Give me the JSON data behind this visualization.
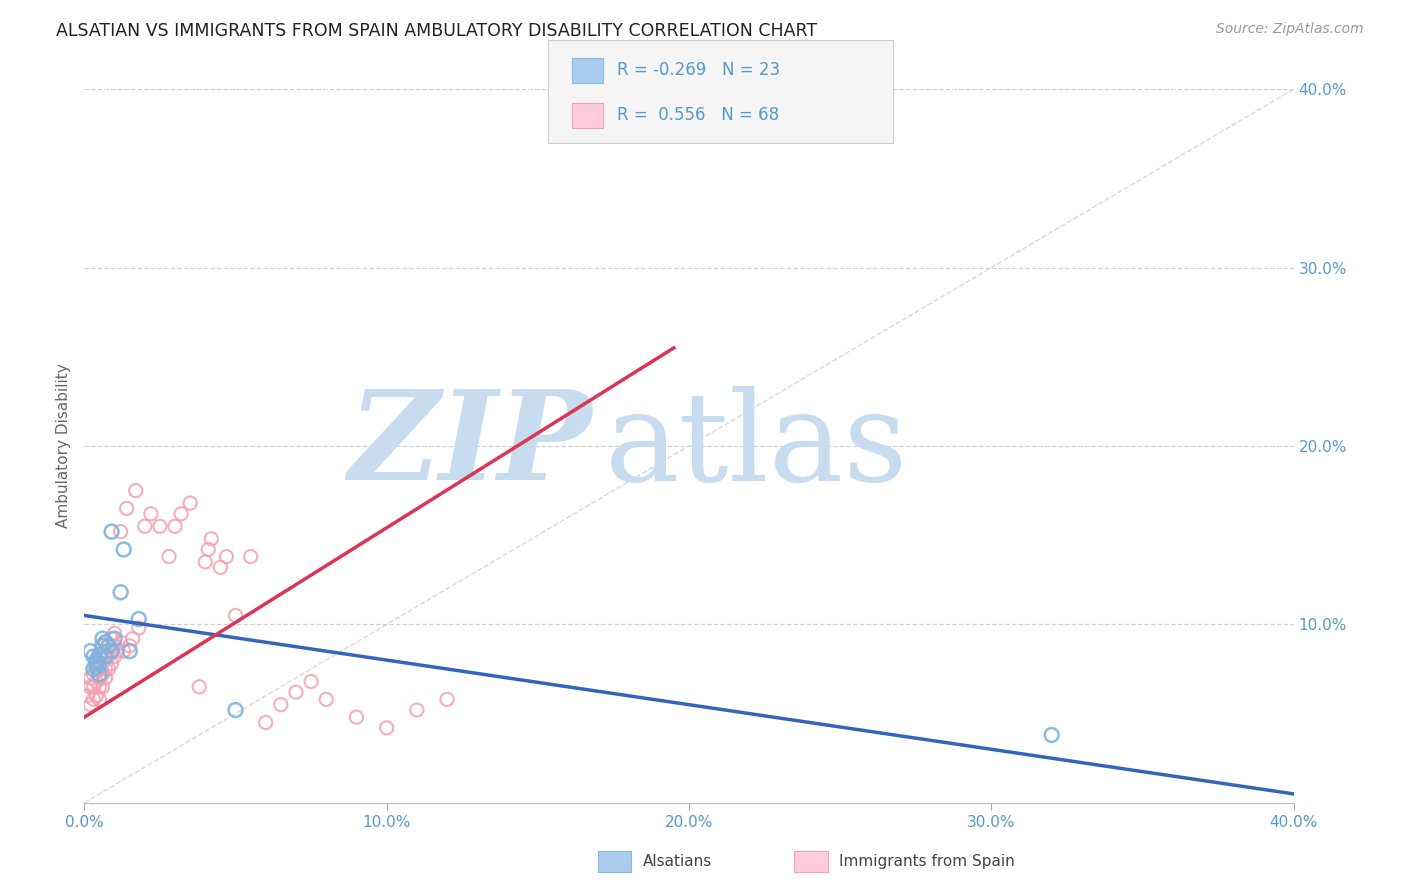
{
  "title": "ALSATIAN VS IMMIGRANTS FROM SPAIN AMBULATORY DISABILITY CORRELATION CHART",
  "source": "Source: ZipAtlas.com",
  "ylabel": "Ambulatory Disability",
  "xlim": [
    0.0,
    0.4
  ],
  "ylim": [
    0.0,
    0.4
  ],
  "xtick_vals": [
    0.0,
    0.1,
    0.2,
    0.3,
    0.4
  ],
  "xtick_labels": [
    "0.0%",
    "10.0%",
    "20.0%",
    "30.0%",
    "40.0%"
  ],
  "ytick_vals": [
    0.1,
    0.2,
    0.3,
    0.4
  ],
  "ytick_labels": [
    "10.0%",
    "20.0%",
    "30.0%",
    "40.0%"
  ],
  "legend_R_blue": "-0.269",
  "legend_N_blue": "23",
  "legend_R_pink": "0.556",
  "legend_N_pink": "68",
  "blue_scatter_color": "#7EB3E0",
  "pink_scatter_color": "#F4A0B0",
  "blue_line_color": "#3366BB",
  "pink_line_color": "#DD3355",
  "diag_line_color": "#C8C8C8",
  "watermark_zip": "ZIP",
  "watermark_atlas": "atlas",
  "watermark_color": "#C8DCF0",
  "alsatian_x": [
    0.002,
    0.003,
    0.003,
    0.004,
    0.004,
    0.004,
    0.005,
    0.005,
    0.005,
    0.006,
    0.006,
    0.007,
    0.007,
    0.008,
    0.009,
    0.009,
    0.01,
    0.012,
    0.013,
    0.015,
    0.018,
    0.05,
    0.32
  ],
  "alsatian_y": [
    0.085,
    0.075,
    0.082,
    0.078,
    0.076,
    0.08,
    0.072,
    0.078,
    0.083,
    0.088,
    0.092,
    0.082,
    0.09,
    0.088,
    0.085,
    0.152,
    0.092,
    0.118,
    0.142,
    0.085,
    0.103,
    0.052,
    0.038
  ],
  "spain_x": [
    0.001,
    0.002,
    0.002,
    0.002,
    0.003,
    0.003,
    0.003,
    0.004,
    0.004,
    0.004,
    0.004,
    0.005,
    0.005,
    0.005,
    0.005,
    0.005,
    0.006,
    0.006,
    0.006,
    0.006,
    0.006,
    0.007,
    0.007,
    0.007,
    0.007,
    0.007,
    0.008,
    0.008,
    0.008,
    0.009,
    0.009,
    0.009,
    0.01,
    0.01,
    0.01,
    0.011,
    0.012,
    0.012,
    0.013,
    0.014,
    0.015,
    0.016,
    0.017,
    0.018,
    0.02,
    0.022,
    0.025,
    0.028,
    0.03,
    0.032,
    0.035,
    0.038,
    0.04,
    0.041,
    0.042,
    0.045,
    0.047,
    0.05,
    0.055,
    0.06,
    0.065,
    0.07,
    0.075,
    0.08,
    0.09,
    0.1,
    0.11,
    0.12
  ],
  "spain_y": [
    0.06,
    0.055,
    0.065,
    0.07,
    0.058,
    0.065,
    0.072,
    0.06,
    0.068,
    0.075,
    0.08,
    0.058,
    0.065,
    0.07,
    0.075,
    0.082,
    0.065,
    0.072,
    0.078,
    0.082,
    0.088,
    0.07,
    0.075,
    0.082,
    0.085,
    0.09,
    0.075,
    0.082,
    0.088,
    0.078,
    0.085,
    0.092,
    0.082,
    0.088,
    0.095,
    0.085,
    0.09,
    0.152,
    0.085,
    0.165,
    0.088,
    0.092,
    0.175,
    0.098,
    0.155,
    0.162,
    0.155,
    0.138,
    0.155,
    0.162,
    0.168,
    0.065,
    0.135,
    0.142,
    0.148,
    0.132,
    0.138,
    0.105,
    0.138,
    0.045,
    0.055,
    0.062,
    0.068,
    0.058,
    0.048,
    0.042,
    0.052,
    0.058
  ],
  "blue_trend_x": [
    0.0,
    0.4
  ],
  "blue_trend_y": [
    0.105,
    0.005
  ],
  "pink_trend_x": [
    0.0,
    0.195
  ],
  "pink_trend_y": [
    0.048,
    0.255
  ]
}
